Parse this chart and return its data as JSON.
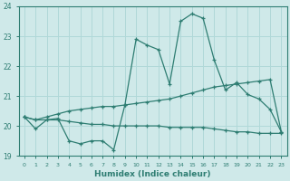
{
  "xlabel": "Humidex (Indice chaleur)",
  "bg_color": "#cfe9e9",
  "line_color": "#2e7d72",
  "grid_color": "#b0d8d8",
  "ylim": [
    19,
    24
  ],
  "xlim": [
    -0.5,
    23.5
  ],
  "yticks": [
    19,
    20,
    21,
    22,
    23,
    24
  ],
  "xticks": [
    0,
    1,
    2,
    3,
    4,
    5,
    6,
    7,
    8,
    9,
    10,
    11,
    12,
    13,
    14,
    15,
    16,
    17,
    18,
    19,
    20,
    21,
    22,
    23
  ],
  "line1_x": [
    0,
    1,
    2,
    3,
    4,
    5,
    6,
    7,
    8,
    9,
    10,
    11,
    12,
    13,
    14,
    15,
    16,
    17,
    18,
    19,
    20,
    21,
    22,
    23
  ],
  "line1_y": [
    20.3,
    19.9,
    20.2,
    20.25,
    19.5,
    19.4,
    19.5,
    19.5,
    19.2,
    20.7,
    22.9,
    22.7,
    22.55,
    21.4,
    23.5,
    23.75,
    23.6,
    22.2,
    21.2,
    21.45,
    21.05,
    20.9,
    20.55,
    19.8
  ],
  "line2_x": [
    0,
    1,
    2,
    3,
    4,
    5,
    6,
    7,
    8,
    9,
    10,
    11,
    12,
    13,
    14,
    15,
    16,
    17,
    18,
    19,
    20,
    21,
    22,
    23
  ],
  "line2_y": [
    20.3,
    20.2,
    20.3,
    20.4,
    20.5,
    20.55,
    20.6,
    20.65,
    20.65,
    20.7,
    20.75,
    20.8,
    20.85,
    20.9,
    21.0,
    21.1,
    21.2,
    21.3,
    21.35,
    21.4,
    21.45,
    21.5,
    21.55,
    19.8
  ],
  "line3_x": [
    0,
    1,
    2,
    3,
    4,
    5,
    6,
    7,
    8,
    9,
    10,
    11,
    12,
    13,
    14,
    15,
    16,
    17,
    18,
    19,
    20,
    21,
    22,
    23
  ],
  "line3_y": [
    20.3,
    20.2,
    20.2,
    20.2,
    20.15,
    20.1,
    20.05,
    20.05,
    20.0,
    20.0,
    20.0,
    20.0,
    20.0,
    19.95,
    19.95,
    19.95,
    19.95,
    19.9,
    19.85,
    19.8,
    19.8,
    19.75,
    19.75,
    19.75
  ]
}
